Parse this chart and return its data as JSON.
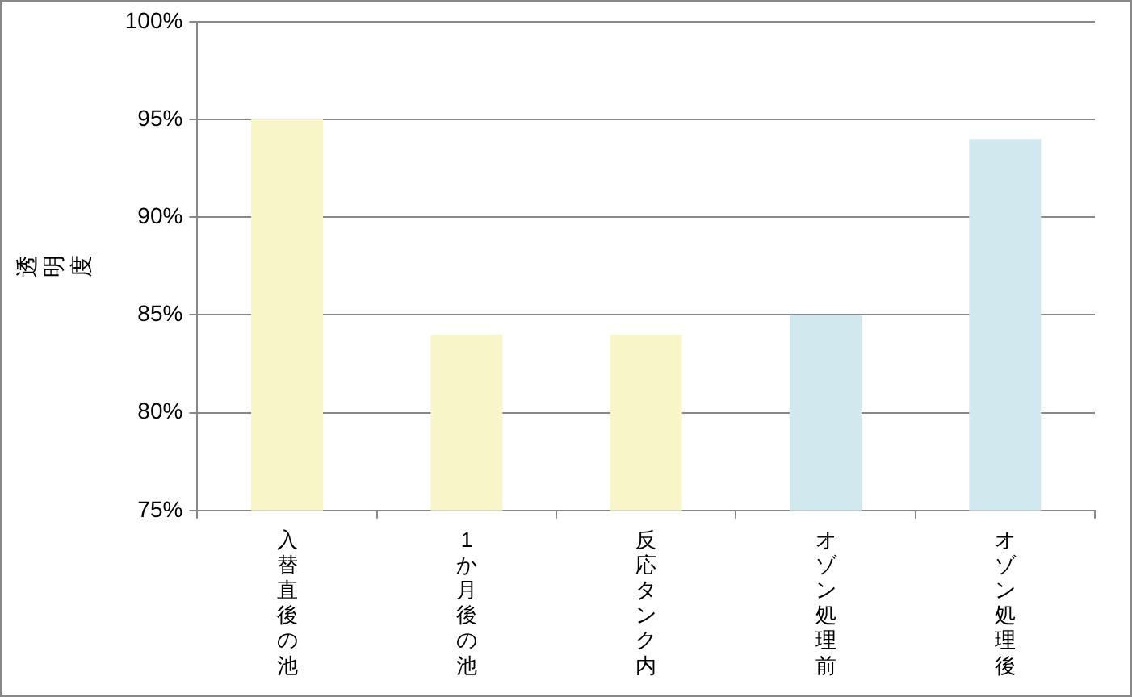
{
  "chart_data": {
    "type": "bar",
    "ylabel": "透明度",
    "categories": [
      "入替直後の池",
      "1か月後の池",
      "反応タンク内",
      "オゾン処理前",
      "オゾン処理後"
    ],
    "values": [
      95,
      84,
      84,
      85,
      94
    ],
    "colors": [
      "#f8f6c8",
      "#f8f6c8",
      "#f8f6c8",
      "#d0e8ee",
      "#d0e8ee"
    ],
    "ylim": [
      75,
      100
    ],
    "yticks": [
      {
        "value": 75,
        "label": "75%"
      },
      {
        "value": 80,
        "label": "80%"
      },
      {
        "value": 85,
        "label": "85%"
      },
      {
        "value": 90,
        "label": "90%"
      },
      {
        "value": 95,
        "label": "95%"
      },
      {
        "value": 100,
        "label": "100%"
      }
    ],
    "grid": "y",
    "legend": false
  }
}
